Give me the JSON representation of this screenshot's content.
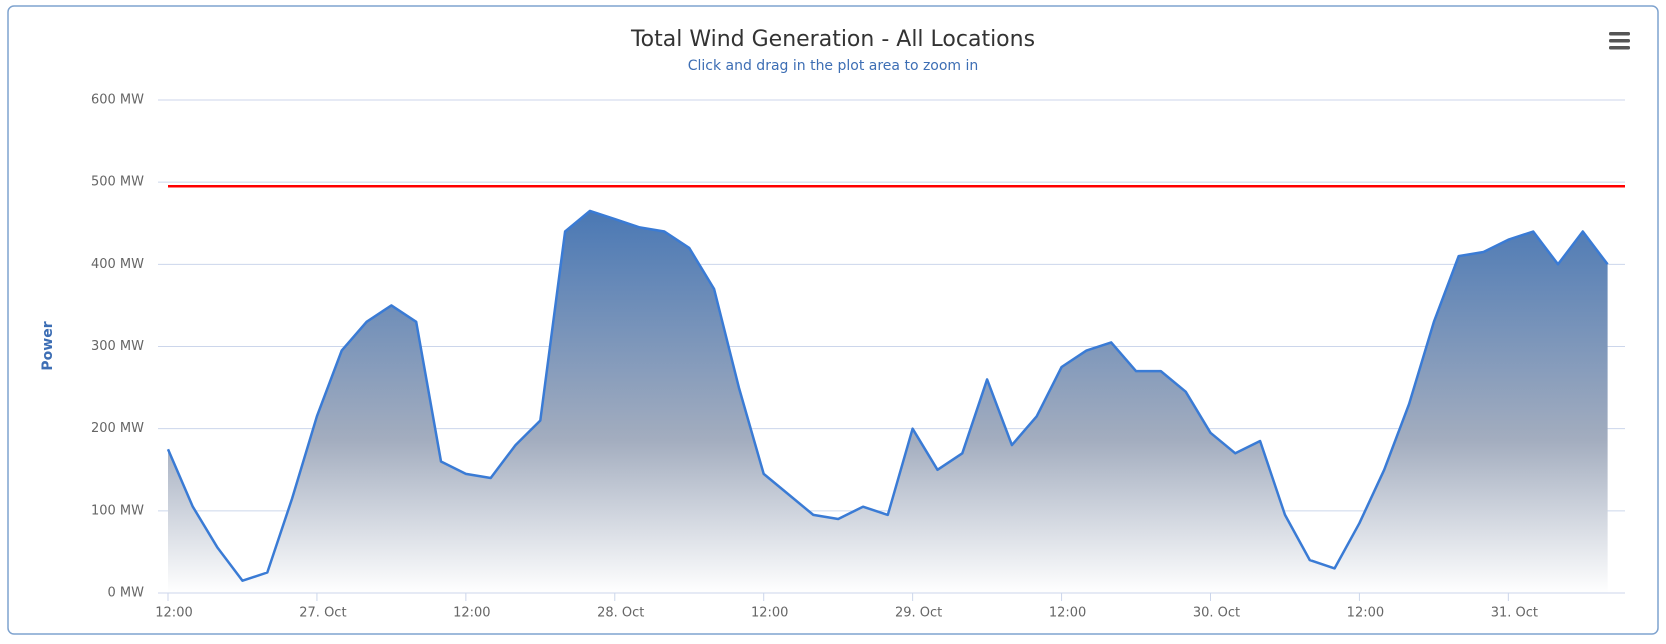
{
  "chart_data": {
    "type": "area",
    "title": "Total Wind Generation - All Locations",
    "subtitle": "Click and drag in the plot area to zoom in",
    "y_label": "Power",
    "categories": [
      "12:00",
      null,
      null,
      null,
      null,
      null,
      "27. Oct",
      null,
      null,
      null,
      null,
      null,
      "12:00",
      null,
      null,
      null,
      null,
      null,
      "28. Oct",
      null,
      null,
      null,
      null,
      null,
      "12:00",
      null,
      null,
      null,
      null,
      null,
      "29. Oct",
      null,
      null,
      null,
      null,
      null,
      "12:00",
      null,
      null,
      null,
      null,
      null,
      "30. Oct",
      null,
      null,
      null,
      null,
      null,
      "12:00",
      null,
      null,
      null,
      null,
      null,
      "31. Oct",
      null,
      null,
      null,
      null
    ],
    "series": [
      {
        "color": "#3a7bd5",
        "values": [
          175,
          105,
          55,
          15,
          25,
          115,
          215,
          295,
          330,
          350,
          330,
          160,
          145,
          140,
          180,
          210,
          440,
          465,
          455,
          445,
          440,
          420,
          370,
          250,
          145,
          120,
          95,
          90,
          105,
          95,
          200,
          150,
          170,
          260,
          180,
          215,
          275,
          295,
          305,
          270,
          270,
          245,
          195,
          170,
          185,
          95,
          40,
          30,
          85,
          150,
          230,
          330,
          410,
          415,
          430,
          440,
          400,
          440,
          400
        ]
      }
    ],
    "plot_lines": [
      {
        "value": 495,
        "color": "#ff0000"
      }
    ],
    "ylim": [
      0,
      600
    ],
    "yticks": [
      {
        "value": 0,
        "label": "0 MW"
      },
      {
        "value": 100,
        "label": "100 MW"
      },
      {
        "value": 200,
        "label": "200 MW"
      },
      {
        "value": 300,
        "label": "300 MW"
      },
      {
        "value": 400,
        "label": "400 MW"
      },
      {
        "value": 500,
        "label": "500 MW"
      },
      {
        "value": 600,
        "label": "600 MW"
      }
    ],
    "grid": true
  }
}
